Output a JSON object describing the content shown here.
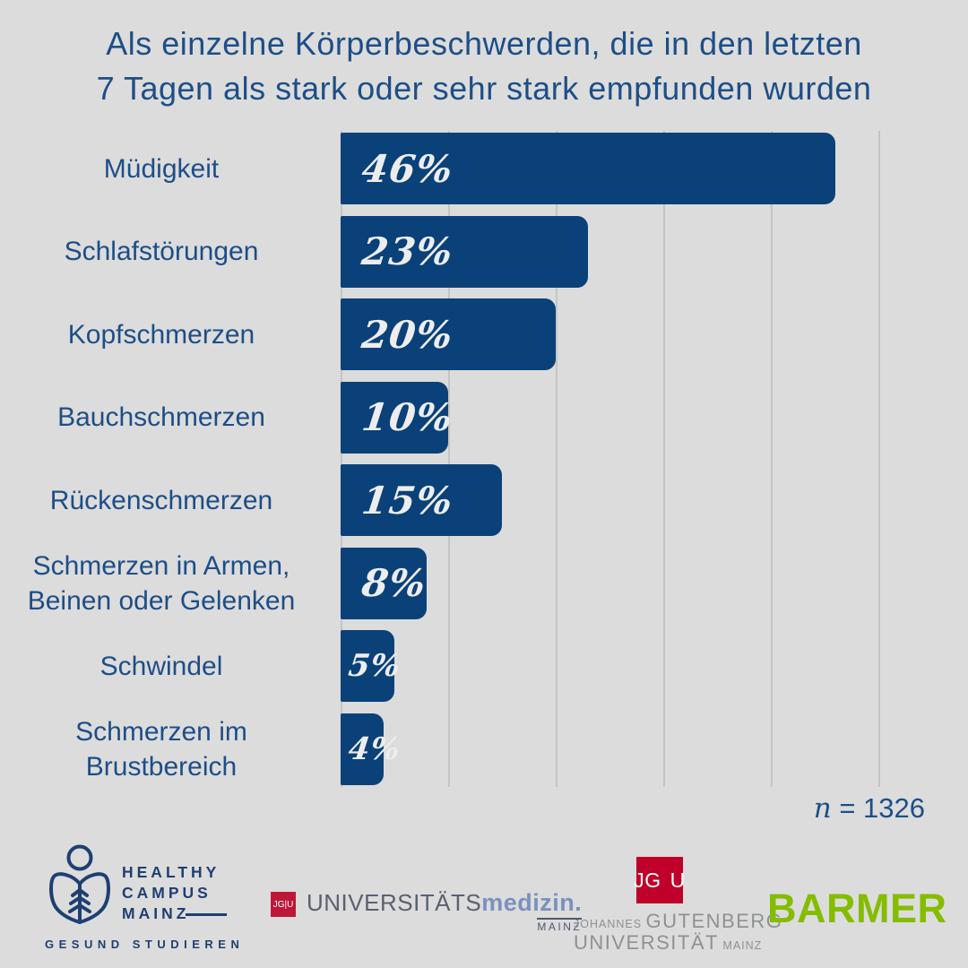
{
  "header": {
    "title_line1": "Als einzelne Körperbeschwerden, die in den letzten",
    "title_line2": "7 Tagen als stark oder sehr stark empfunden wurden"
  },
  "chart_data": {
    "type": "bar",
    "orientation": "horizontal",
    "title": "Als einzelne Körperbeschwerden, die in den letzten 7 Tagen als stark oder sehr stark empfunden wurden",
    "categories": [
      "Müdigkeit",
      "Schlafstörungen",
      "Kopfschmerzen",
      "Bauchschmerzen",
      "Rückenschmerzen",
      "Schmerzen in Armen, Beinen oder Gelenken",
      "Schwindel",
      "Schmerzen im Brustbereich"
    ],
    "label_lines": [
      [
        "Müdigkeit"
      ],
      [
        "Schlafstörungen"
      ],
      [
        "Kopfschmerzen"
      ],
      [
        "Bauchschmerzen"
      ],
      [
        "Rückenschmerzen"
      ],
      [
        "Schmerzen in Armen,",
        "Beinen oder Gelenken"
      ],
      [
        "Schwindel"
      ],
      [
        "Schmerzen im",
        "Brustbereich"
      ]
    ],
    "values": [
      46,
      23,
      20,
      10,
      15,
      8,
      5,
      4
    ],
    "value_labels": [
      "46%",
      "23%",
      "20%",
      "10%",
      "15%",
      "8%",
      "5%",
      "4%"
    ],
    "unit": "%",
    "xlim": [
      0,
      50
    ],
    "gridline_values": [
      0,
      10,
      20,
      30,
      40,
      50
    ],
    "grid": true,
    "legend": false,
    "sample_size": "n = 1326"
  },
  "annotation": {
    "n_symbol": "n",
    "n_rest": "= 1326"
  },
  "footer": {
    "healthy_campus": {
      "line1": "HEALTHY",
      "line2": "CAMPUS",
      "line3": "MAINZ",
      "tagline": "GESUND STUDIEREN"
    },
    "universitaetsmedizin": {
      "badge": "JG|U",
      "name_thin": "UNIVERSITÄTS",
      "name_bold": "medizin.",
      "city": "MAINZ"
    },
    "jgu": {
      "badge_left": "JG",
      "badge_right": "U",
      "name_small_1": "JOHANNES",
      "name_large_1": "GUTENBERG",
      "name_large_2": "UNIVERSITÄT",
      "name_small_2": "MAINZ"
    },
    "barmer": {
      "name": "BARMER"
    }
  },
  "colors": {
    "background": "#dcdcdc",
    "bar": "#0a4179",
    "heading_blue": "#1d4e87",
    "gridline": "#c4c4c4",
    "value_text": "#ededed",
    "hcm_navy": "#1e3f72",
    "jgu_red": "#c1002a",
    "um_red": "#bf1738",
    "um_gray_blue": "#59616f",
    "um_light_blue": "#7b90bd",
    "jgu_gray": "#8e9193",
    "barmer_green": "#84bd00"
  }
}
